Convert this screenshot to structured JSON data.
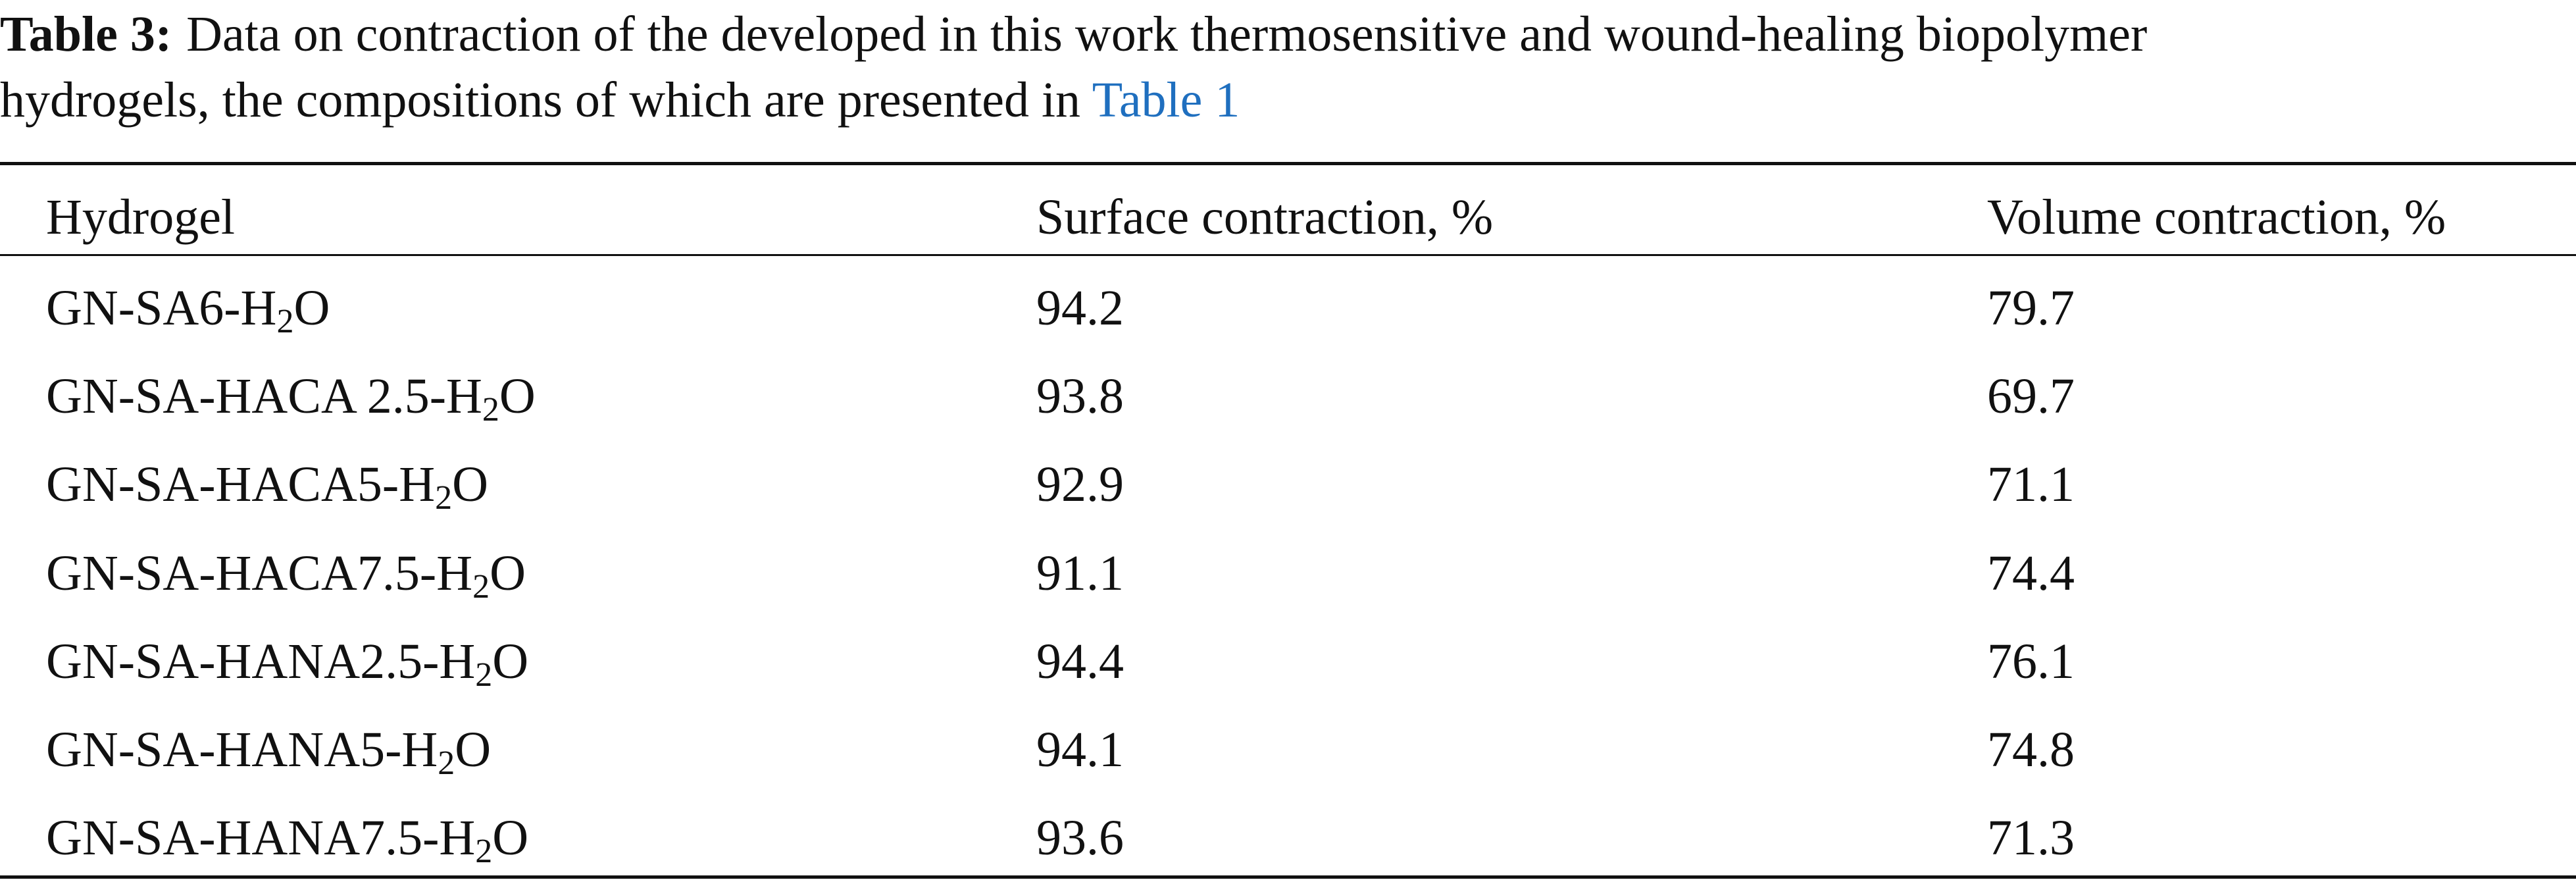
{
  "caption": {
    "label": "Table 3:",
    "line1": "Data on contraction of the developed in this work thermosensitive and wound-healing biopolymer",
    "line2": "hydrogels, the compositions of which are presented in",
    "link": "Table 1"
  },
  "table": {
    "header": [
      "Hydrogel",
      "Surface contraction, %",
      "Volume contraction, %"
    ],
    "rows": [
      [
        {
          "prefix": "GN-SA6-H",
          "sub": "2",
          "suffix": "O"
        },
        94.2,
        79.7
      ],
      [
        {
          "prefix": "GN-SA-HACA 2.5-H",
          "sub": "2",
          "suffix": "O"
        },
        93.8,
        69.7
      ],
      [
        {
          "prefix": "GN-SA-HACA5-H",
          "sub": "2",
          "suffix": "O"
        },
        92.9,
        71.1
      ],
      [
        {
          "prefix": "GN-SA-HACA7.5-H",
          "sub": "2",
          "suffix": "O"
        },
        91.1,
        74.4
      ],
      [
        {
          "prefix": "GN-SA-HANA2.5-H",
          "sub": "2",
          "suffix": "O"
        },
        94.4,
        76.1
      ],
      [
        {
          "prefix": "GN-SA-HANA5-H",
          "sub": "2",
          "suffix": "O"
        },
        94.1,
        74.8
      ],
      [
        {
          "prefix": "GN-SA-HANA7.5-H",
          "sub": "2",
          "suffix": "O"
        },
        93.6,
        71.3
      ]
    ]
  }
}
